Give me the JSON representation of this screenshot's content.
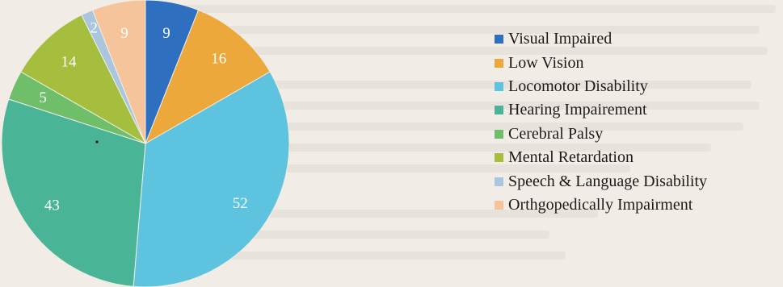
{
  "chart_data": {
    "type": "pie",
    "title": "",
    "legend_position": "right",
    "categories": [
      "Visual Impaired",
      "Low Vision",
      "Locomotor Disability",
      "Hearing Impairement",
      "Cerebral Palsy",
      "Mental Retardation",
      "Speech & Language Disability",
      "Orthgopedically Impairment"
    ],
    "values": [
      9,
      16,
      52,
      43,
      5,
      14,
      2,
      9
    ],
    "labels": [
      "9",
      "16",
      "52",
      "43",
      "5",
      "14",
      "2",
      "9"
    ],
    "colors": [
      "#2f6fbf",
      "#eca83a",
      "#5ec3de",
      "#49b596",
      "#6fbf6a",
      "#a5be3e",
      "#a9c6de",
      "#f6c49a"
    ]
  }
}
